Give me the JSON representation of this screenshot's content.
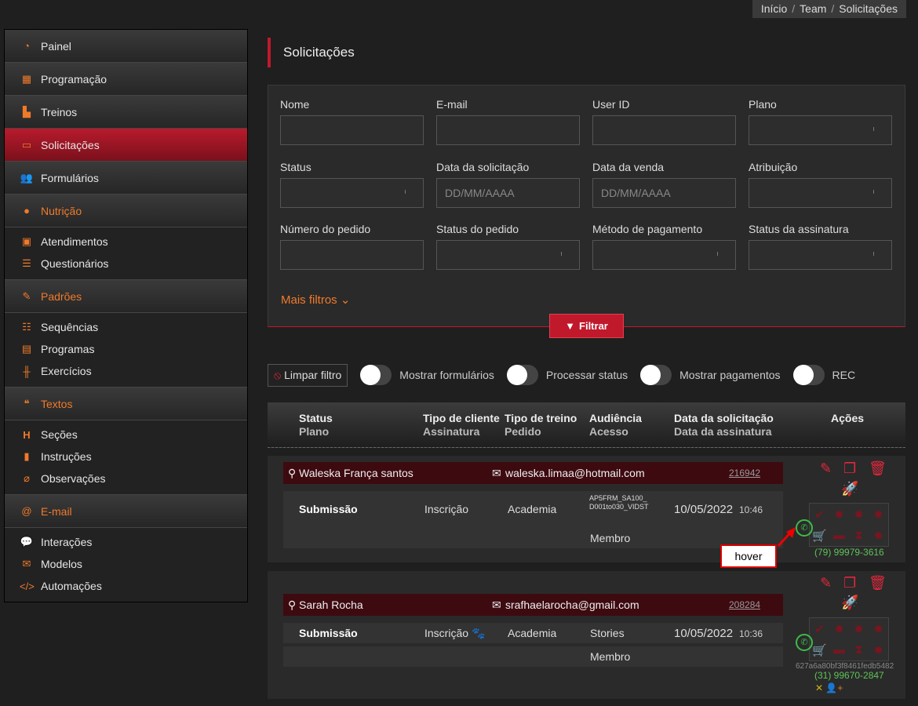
{
  "breadcrumb": [
    "Início",
    "Team",
    "Solicitações"
  ],
  "sidebar": {
    "items": [
      {
        "label": "Painel",
        "icon": "gauge-icon"
      },
      {
        "label": "Programação",
        "icon": "calendar-icon"
      },
      {
        "label": "Treinos",
        "icon": "chart-icon"
      },
      {
        "label": "Solicitações",
        "icon": "inbox-icon",
        "active": true
      },
      {
        "label": "Formulários",
        "icon": "users-icon"
      }
    ],
    "sections": [
      {
        "label": "Nutrição",
        "icon": "apple-icon",
        "items": [
          {
            "label": "Atendimentos",
            "icon": "laptop-icon"
          },
          {
            "label": "Questionários",
            "icon": "list-icon"
          }
        ]
      },
      {
        "label": "Padrões",
        "icon": "edit-icon",
        "items": [
          {
            "label": "Sequências",
            "icon": "list-ol-icon"
          },
          {
            "label": "Programas",
            "icon": "archive-icon"
          },
          {
            "label": "Exercícios",
            "icon": "dumbbell-icon"
          }
        ]
      },
      {
        "label": "Textos",
        "icon": "quote-icon",
        "items": [
          {
            "label": "Seções",
            "icon": "heading-icon"
          },
          {
            "label": "Instruções",
            "icon": "book-icon"
          },
          {
            "label": "Observações",
            "icon": "paperclip-icon"
          }
        ]
      },
      {
        "label": "E-mail",
        "icon": "at-icon",
        "items": [
          {
            "label": "Interações",
            "icon": "comments-icon"
          },
          {
            "label": "Modelos",
            "icon": "envelope-icon"
          },
          {
            "label": "Automações",
            "icon": "code-icon"
          }
        ]
      }
    ]
  },
  "page_title": "Solicitações",
  "filters": {
    "fields": [
      {
        "label": "Nome",
        "value": ""
      },
      {
        "label": "E-mail",
        "value": ""
      },
      {
        "label": "User ID",
        "value": ""
      },
      {
        "label": "Plano",
        "value": "",
        "select": true
      },
      {
        "label": "Status",
        "value": "",
        "select": true
      },
      {
        "label": "Data da solicitação",
        "placeholder": "DD/MM/AAAA"
      },
      {
        "label": "Data da venda",
        "placeholder": "DD/MM/AAAA"
      },
      {
        "label": "Atribuição",
        "value": "",
        "select": true
      },
      {
        "label": "Número do pedido",
        "value": ""
      },
      {
        "label": "Status do pedido",
        "value": "",
        "select": true
      },
      {
        "label": "Método de pagamento",
        "value": "",
        "select": true
      },
      {
        "label": "Status da assinatura",
        "value": "",
        "select": true
      }
    ],
    "more": "Mais filtros",
    "submit": "Filtrar"
  },
  "toolbar": {
    "clear": "Limpar filtro",
    "toggles": [
      {
        "label": "Mostrar formulários",
        "on": false
      },
      {
        "label": "Processar status",
        "on": false
      },
      {
        "label": "Mostrar pagamentos",
        "on": false
      },
      {
        "label": "REC",
        "on": false
      }
    ]
  },
  "table": {
    "headers": [
      {
        "main": "Status",
        "sub": "Plano"
      },
      {
        "main": "Tipo de cliente",
        "sub": "Assinatura"
      },
      {
        "main": "Tipo de treino",
        "sub": "Pedido"
      },
      {
        "main": "Audiência",
        "sub": "Acesso"
      },
      {
        "main": "Data da solicitação",
        "sub": "Data da assinatura"
      },
      {
        "main": "Ações",
        "sub": ""
      }
    ],
    "rows": [
      {
        "name": "Waleska França santos",
        "email": "waleska.limaa@hotmail.com",
        "order": "216942",
        "status": "Submissão",
        "client": "Inscrição",
        "training": "Academia",
        "audience": "AP5FRM_SA100_D001to030_VIDST",
        "date": "10/05/2022",
        "time": "10:46",
        "plan": "Membro",
        "phone": "(79) 99979-3616",
        "id": ""
      },
      {
        "name": "Sarah Rocha",
        "email": "srafhaelarocha@gmail.com",
        "order": "208284",
        "status": "Submissão",
        "client": "Inscrição",
        "training": "Academia",
        "audience": "Stories",
        "date": "10/05/2022",
        "time": "10:36",
        "plan": "Membro",
        "phone": "(31) 99670-2847",
        "id": "627a6a80bf3f8461fedb5482"
      }
    ]
  },
  "annotation": "hover",
  "colors": {
    "accent": "#c0192c",
    "orange": "#f07a2a",
    "whatsapp": "#3dbb4a"
  }
}
